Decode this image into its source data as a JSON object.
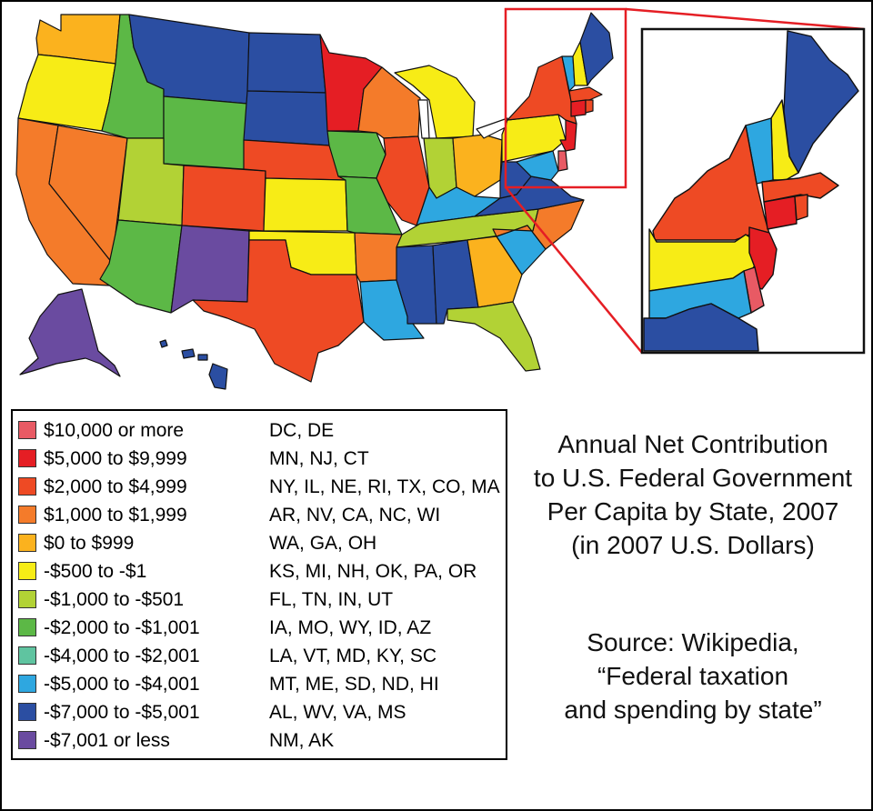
{
  "title": {
    "lines": [
      "Annual Net Contribution",
      "to U.S. Federal Government",
      "Per Capita by State, 2007",
      "(in 2007 U.S. Dollars)"
    ]
  },
  "source": {
    "lines": [
      "Source: Wikipedia,",
      "“Federal taxation",
      "and spending by state”"
    ]
  },
  "legend": [
    {
      "range": "$10,000 or more",
      "states": "DC, DE",
      "color": "#e85a64"
    },
    {
      "range": "$5,000 to $9,999",
      "states": "MN, NJ, CT",
      "color": "#e51e24"
    },
    {
      "range": "$2,000 to $4,999",
      "states": "NY, IL, NE, RI, TX, CO, MA",
      "color": "#ee4a24"
    },
    {
      "range": "$1,000 to $1,999",
      "states": "AR, NV, CA, NC, WI",
      "color": "#f47b2a"
    },
    {
      "range": "$0 to $999",
      "states": "WA, GA, OH",
      "color": "#fbb21e"
    },
    {
      "range": "-$500 to -$1",
      "states": "KS, MI, NH, OK, PA, OR",
      "color": "#f7ec16"
    },
    {
      "range": "-$1,000 to -$501",
      "states": "FL, TN, IN, UT",
      "color": "#b2d235"
    },
    {
      "range": "-$2,000 to -$1,001",
      "states": "IA, MO, WY, ID, AZ",
      "color": "#5cb846"
    },
    {
      "range": "-$4,000 to -$2,001",
      "states": "LA, VT, MD, KY, SC",
      "color": "#5fc4a0"
    },
    {
      "range": "-$5,000 to -$4,001",
      "states": "MT, ME, SD, ND, HI",
      "color": "#2ea7e0"
    },
    {
      "range": "-$7,000 to -$5,001",
      "states": "AL, WV, VA, MS",
      "color": "#2b4ea2"
    },
    {
      "range": "-$7,001 or less",
      "states": "NM, AK",
      "color": "#6a4ba0"
    }
  ],
  "map_colors": {
    "frame_red": "#e51e24",
    "outline": "#111111"
  }
}
